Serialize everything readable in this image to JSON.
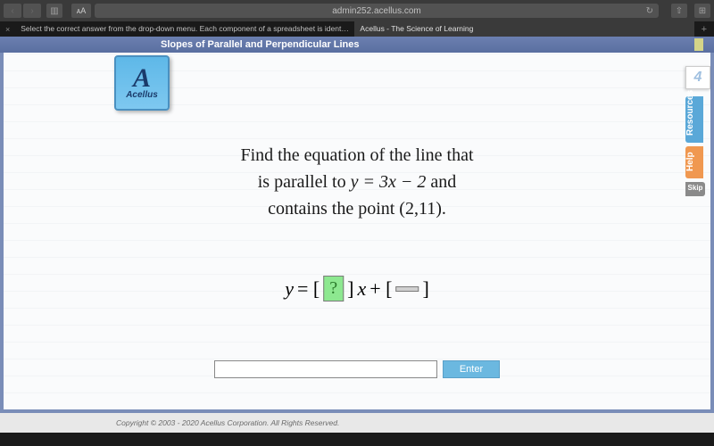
{
  "browser": {
    "url": "admin252.acellus.com"
  },
  "tabs": {
    "inactive": "Select the correct answer from the drop-down menu. Each component of a spreadsheet is identified in a - Brainly.com",
    "active": "Acellus - The Science of Learning"
  },
  "header": {
    "title": "Slopes of Parallel and Perpendicular Lines"
  },
  "logo": {
    "letter": "A",
    "name": "Acellus"
  },
  "problem": {
    "line1": "Find the equation of the line that",
    "line2_pre": "is parallel to ",
    "line2_eq": "y = 3x − 2",
    "line2_post": " and",
    "line3": "contains the point (2,11)."
  },
  "equation": {
    "y": "y",
    "equals": " = [",
    "question": " ? ",
    "mid": "]",
    "x": "x",
    "plus": " + [",
    "blank": " ",
    "end": "]"
  },
  "answer": {
    "value": "",
    "enter": "Enter"
  },
  "sidebar": {
    "number": "4",
    "resources": "Resources",
    "help": "Help",
    "skip": "Skip"
  },
  "footer": {
    "copyright": "Copyright © 2003 - 2020 Acellus Corporation.  All Rights Reserved."
  }
}
